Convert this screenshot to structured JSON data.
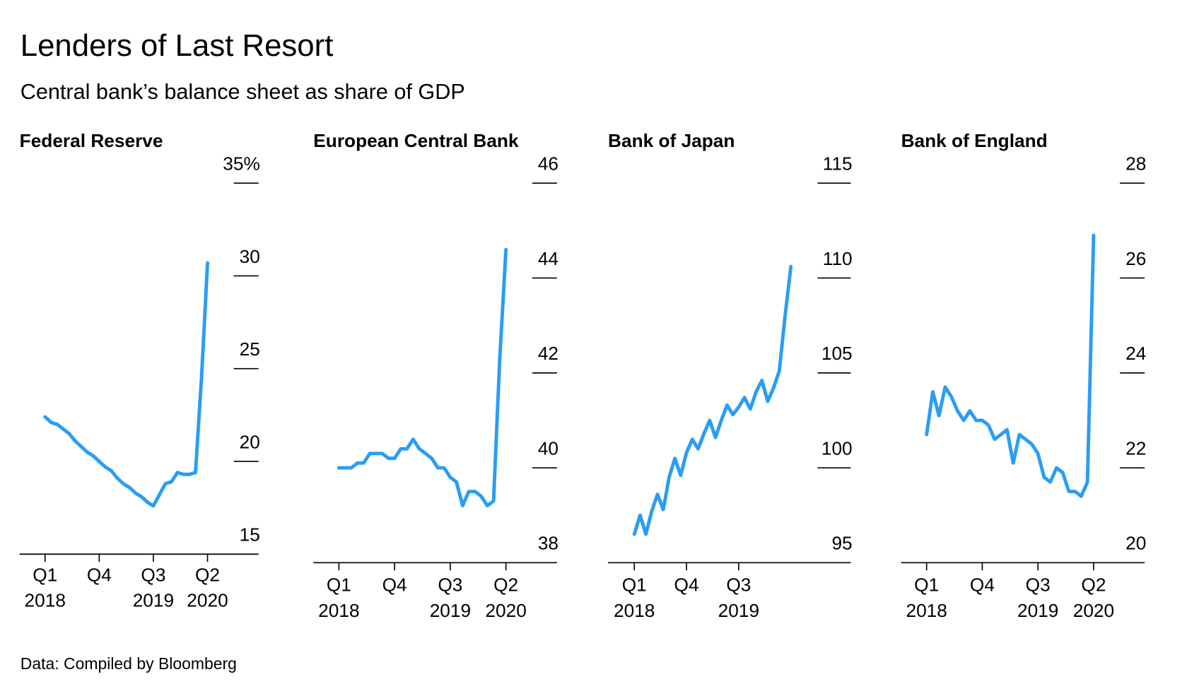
{
  "title": "Lenders of Last Resort",
  "subtitle": "Central bank’s balance sheet as share of GDP",
  "source": "Data: Compiled by Bloomberg",
  "chart_data": [
    {
      "type": "line",
      "title": "Federal Reserve",
      "color": "#2a9df4",
      "categories": [
        "Q1\n2018",
        null,
        null,
        null,
        null,
        null,
        null,
        null,
        null,
        "Q4",
        null,
        null,
        null,
        null,
        null,
        null,
        null,
        null,
        "Q3\n2019",
        null,
        null,
        null,
        null,
        null,
        null,
        null,
        null,
        "Q2\n2020"
      ],
      "values": [
        22.4,
        22.1,
        22.0,
        21.75,
        21.5,
        21.1,
        20.8,
        20.5,
        20.3,
        20.0,
        19.7,
        19.5,
        19.1,
        18.8,
        18.6,
        18.3,
        18.1,
        17.8,
        17.6,
        18.2,
        18.8,
        18.9,
        19.4,
        19.3,
        19.3,
        19.4,
        24.5,
        30.7
      ],
      "ylim": [
        15,
        35
      ],
      "yticks": [
        15,
        20,
        25,
        30,
        {
          "value": 35,
          "label": "35%"
        }
      ]
    },
    {
      "type": "line",
      "title": "European Central Bank",
      "color": "#2a9df4",
      "categories": [
        "Q1\n2018",
        null,
        null,
        null,
        null,
        null,
        null,
        null,
        null,
        "Q4",
        null,
        null,
        null,
        null,
        null,
        null,
        null,
        null,
        "Q3\n2019",
        null,
        null,
        null,
        null,
        null,
        null,
        null,
        null,
        "Q2\n2020"
      ],
      "values": [
        40.0,
        40.0,
        40.0,
        40.1,
        40.1,
        40.3,
        40.3,
        40.3,
        40.2,
        40.2,
        40.4,
        40.4,
        40.6,
        40.4,
        40.3,
        40.2,
        40.0,
        40.0,
        39.8,
        39.7,
        39.2,
        39.5,
        39.5,
        39.4,
        39.2,
        39.3,
        42.3,
        44.6
      ],
      "ylim": [
        38,
        46
      ],
      "yticks": [
        38,
        40,
        42,
        44,
        46
      ]
    },
    {
      "type": "line",
      "title": "Bank of Japan",
      "color": "#2a9df4",
      "categories": [
        "Q1\n2018",
        null,
        null,
        null,
        null,
        null,
        null,
        null,
        null,
        "Q4",
        null,
        null,
        null,
        null,
        null,
        null,
        null,
        null,
        "Q3\n2019",
        null,
        null,
        null,
        null,
        null,
        null,
        null,
        null,
        null
      ],
      "values": [
        96.5,
        97.5,
        96.5,
        97.7,
        98.6,
        97.8,
        99.5,
        100.5,
        99.6,
        100.8,
        101.5,
        101.0,
        101.8,
        102.5,
        101.6,
        102.5,
        103.3,
        102.8,
        103.2,
        103.7,
        103.1,
        104.0,
        104.6,
        103.5,
        104.2,
        105.1,
        108.0,
        110.6
      ],
      "ylim": [
        95,
        115
      ],
      "yticks": [
        95,
        100,
        105,
        110,
        115
      ]
    },
    {
      "type": "line",
      "title": "Bank of England",
      "color": "#2a9df4",
      "categories": [
        "Q1\n2018",
        null,
        null,
        null,
        null,
        null,
        null,
        null,
        null,
        "Q4",
        null,
        null,
        null,
        null,
        null,
        null,
        null,
        null,
        "Q3\n2019",
        null,
        null,
        null,
        null,
        null,
        null,
        null,
        null,
        "Q2\n2020"
      ],
      "values": [
        22.7,
        23.6,
        23.1,
        23.7,
        23.5,
        23.2,
        23.0,
        23.2,
        23.0,
        23.0,
        22.9,
        22.6,
        22.7,
        22.8,
        22.1,
        22.7,
        22.6,
        22.5,
        22.3,
        21.8,
        21.7,
        22.0,
        21.9,
        21.5,
        21.5,
        21.4,
        21.7,
        26.9
      ],
      "ylim": [
        20,
        28
      ],
      "yticks": [
        20,
        22,
        24,
        26,
        28
      ]
    }
  ]
}
